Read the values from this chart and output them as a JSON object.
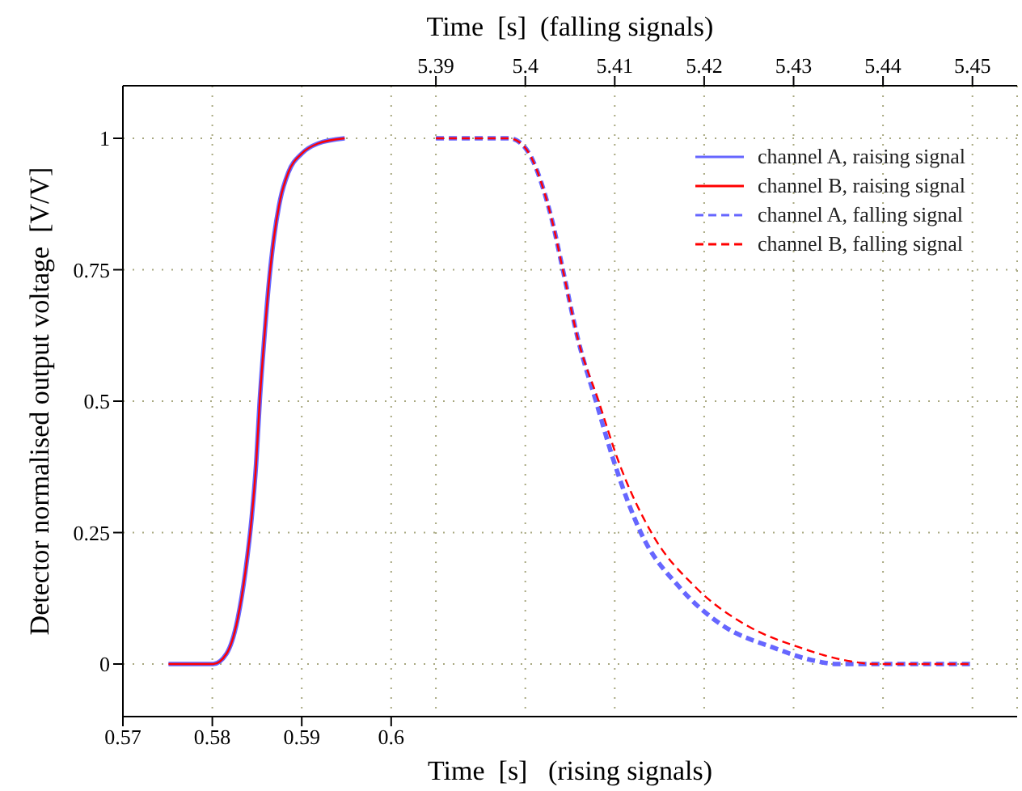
{
  "chart_data": {
    "type": "line",
    "xlabel": "Time  [s]   (rising signals)",
    "x2label": "Time  [s]  (falling signals)",
    "ylabel": "Detector normalised output voltage  [V/V]",
    "xlim": [
      0.57,
      0.67
    ],
    "xticks": [
      0.57,
      0.58,
      0.59,
      0.6
    ],
    "x2lim": [
      5.355,
      5.455
    ],
    "x2ticks": [
      5.39,
      5.4,
      5.41,
      5.42,
      5.43,
      5.44,
      5.45
    ],
    "ylim": [
      -0.1,
      1.1
    ],
    "yticks": [
      0,
      0.25,
      0.5,
      0.75,
      1
    ],
    "grid": true,
    "legend": "top right",
    "marker": "none",
    "series": [
      {
        "name": "channel A, raising signal",
        "color": "#6666ff",
        "line_style": "solid",
        "x": [
          0.5751,
          0.5801,
          0.5816,
          0.5828,
          0.5837,
          0.5844,
          0.5849,
          0.5853,
          0.5858,
          0.5863,
          0.5869,
          0.5876,
          0.5885,
          0.59,
          0.5918,
          0.5948
        ],
        "values": [
          0,
          0,
          0.02,
          0.083,
          0.176,
          0.278,
          0.381,
          0.5,
          0.617,
          0.72,
          0.812,
          0.884,
          0.935,
          0.971,
          0.99,
          1
        ]
      },
      {
        "name": "channel B, raising signal",
        "color": "#ff0000",
        "line_style": "solid",
        "x": [
          0.5751,
          0.5801,
          0.5816,
          0.5828,
          0.5837,
          0.5844,
          0.5849,
          0.5853,
          0.5858,
          0.5863,
          0.5869,
          0.5876,
          0.5885,
          0.59,
          0.5918,
          0.5948
        ],
        "values": [
          0,
          0,
          0.02,
          0.083,
          0.176,
          0.278,
          0.381,
          0.5,
          0.617,
          0.72,
          0.812,
          0.884,
          0.935,
          0.971,
          0.99,
          1
        ]
      },
      {
        "name": "channel A, falling signal",
        "color": "#6666ff",
        "line_style": "dashed",
        "axis": "x2",
        "x": [
          5.39,
          5.3982,
          5.3994,
          5.4006,
          5.4018,
          5.403,
          5.4042,
          5.4059,
          5.4079,
          5.4098,
          5.413,
          5.4173,
          5.4221,
          5.4276,
          5.4324,
          5.4348,
          5.45
        ],
        "values": [
          1,
          1,
          0.992,
          0.966,
          0.915,
          0.843,
          0.75,
          0.617,
          0.5,
          0.391,
          0.247,
          0.145,
          0.073,
          0.032,
          0.006,
          0,
          0
        ]
      },
      {
        "name": "channel B, falling signal",
        "color": "#ff0000",
        "line_style": "dashed",
        "axis": "x2",
        "x": [
          5.39,
          5.3982,
          5.3994,
          5.4006,
          5.4018,
          5.403,
          5.4042,
          5.4059,
          5.4082,
          5.4103,
          5.4142,
          5.4191,
          5.4248,
          5.4306,
          5.4361,
          5.4391,
          5.45
        ],
        "values": [
          1,
          1,
          0.992,
          0.966,
          0.915,
          0.843,
          0.75,
          0.617,
          0.5,
          0.391,
          0.247,
          0.145,
          0.073,
          0.032,
          0.006,
          0,
          0
        ]
      }
    ]
  }
}
